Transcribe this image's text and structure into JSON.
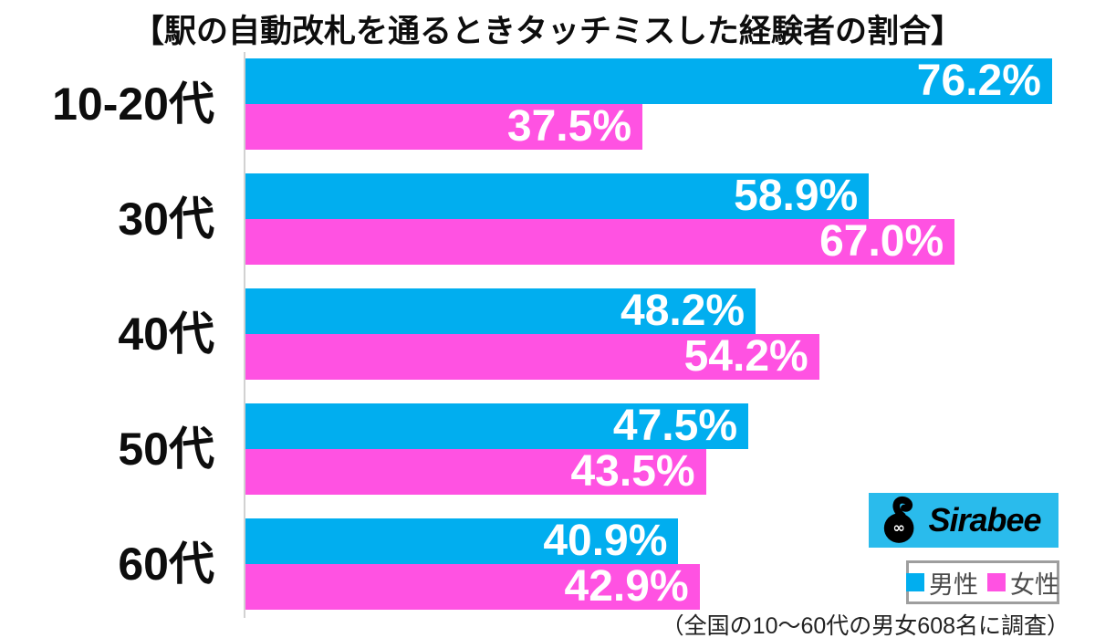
{
  "title": "【駅の自動改札を通るときタッチミスした経験者の割合】",
  "chart_data": {
    "type": "bar",
    "orientation": "horizontal",
    "title": "【駅の自動改札を通るときタッチミスした経験者の割合】",
    "categories": [
      "10-20代",
      "30代",
      "40代",
      "50代",
      "60代"
    ],
    "series": [
      {
        "key": "male",
        "name": "男性",
        "color": "#01AEEF",
        "values": [
          76.2,
          58.9,
          48.2,
          47.5,
          40.9
        ]
      },
      {
        "key": "female",
        "name": "女性",
        "color": "#FF52E2",
        "values": [
          37.5,
          67.0,
          54.2,
          43.5,
          42.9
        ]
      }
    ],
    "value_suffix": "%",
    "value_label_color": "#ffffff",
    "axis_range": [
      0,
      100
    ],
    "axis_ticks_visible": false,
    "grid": false,
    "legend_position": "bottom-right"
  },
  "legend": {
    "items": [
      {
        "key": "male",
        "label": "男性",
        "color": "#01AEEF"
      },
      {
        "key": "female",
        "label": "女性",
        "color": "#FF52E2"
      }
    ]
  },
  "logo": {
    "text": "Sirabee",
    "background": "#2ABBEC",
    "mascot": "sirabee-mascot"
  },
  "footnote": "（全国の10〜60代の男女608名に調査）"
}
